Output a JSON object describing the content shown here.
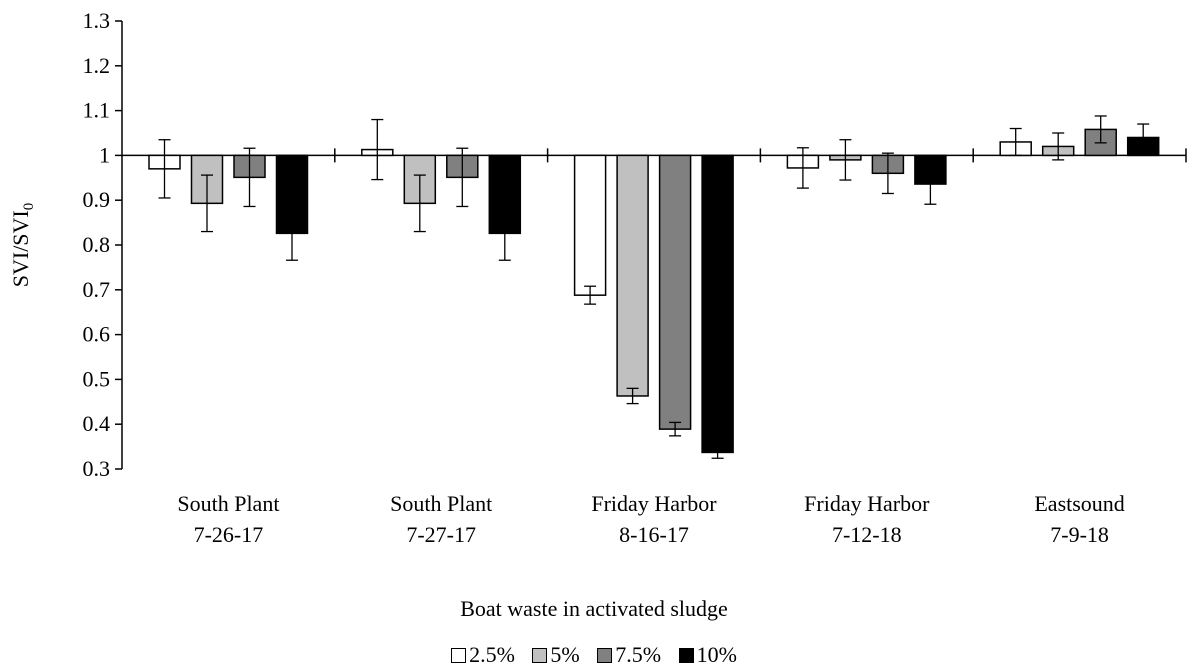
{
  "chart_data": {
    "type": "bar",
    "xlabel": "Boat waste in activated sludge",
    "ylabel_main": "SVI/SVI",
    "ylabel_sub": "0",
    "ylim": [
      0.3,
      1.3
    ],
    "yticks": [
      "0.3",
      "0.4",
      "0.5",
      "0.6",
      "0.7",
      "0.8",
      "0.9",
      "1",
      "1.1",
      "1.2",
      "1.3"
    ],
    "baseline": 1,
    "categories": [
      [
        "South Plant",
        "7-26-17"
      ],
      [
        "South Plant",
        "7-27-17"
      ],
      [
        "Friday Harbor",
        "8-16-17"
      ],
      [
        "Friday Harbor",
        "7-12-18"
      ],
      [
        "Eastsound",
        "7-9-18"
      ]
    ],
    "series": [
      {
        "name": "2.5%",
        "color": "#ffffff",
        "values": [
          0.97,
          1.013,
          0.688,
          0.972,
          1.03
        ],
        "errors": [
          0.065,
          0.067,
          0.02,
          0.045,
          0.03
        ]
      },
      {
        "name": "5%",
        "color": "#c0c0c0",
        "values": [
          0.893,
          0.893,
          0.463,
          0.99,
          1.02
        ],
        "errors": [
          0.063,
          0.063,
          0.017,
          0.045,
          0.03
        ]
      },
      {
        "name": "7.5%",
        "color": "#808080",
        "values": [
          0.951,
          0.951,
          0.389,
          0.96,
          1.058
        ],
        "errors": [
          0.065,
          0.065,
          0.015,
          0.045,
          0.03
        ]
      },
      {
        "name": "10%",
        "color": "#000000",
        "values": [
          0.826,
          0.826,
          0.337,
          0.936,
          1.04
        ],
        "errors": [
          0.06,
          0.06,
          0.013,
          0.045,
          0.03
        ]
      }
    ],
    "legend_position": "bottom-center"
  }
}
